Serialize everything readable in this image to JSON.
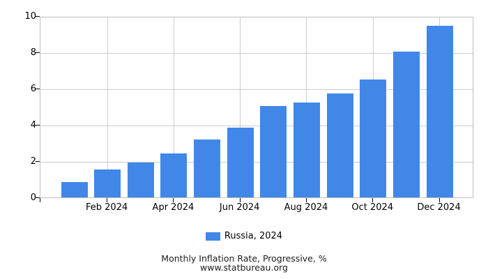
{
  "chart_data": {
    "type": "bar",
    "title": "Monthly Inflation Rate, Progressive, %",
    "subtitle": "www.statbureau.org",
    "legend": [
      {
        "label": "Russia, 2024",
        "color": "#4187E8"
      }
    ],
    "legend_position": "bottom",
    "categories": [
      "Jan 2024",
      "Feb 2024",
      "Mar 2024",
      "Apr 2024",
      "May 2024",
      "Jun 2024",
      "Jul 2024",
      "Aug 2024",
      "Sep 2024",
      "Oct 2024",
      "Nov 2024",
      "Dec 2024"
    ],
    "values": [
      0.86,
      1.55,
      1.95,
      2.46,
      3.22,
      3.88,
      5.06,
      5.27,
      5.78,
      6.56,
      8.09,
      9.52
    ],
    "x_tick_labels": [
      {
        "index": 1,
        "label": "Feb 2024"
      },
      {
        "index": 3,
        "label": "Apr 2024"
      },
      {
        "index": 5,
        "label": "Jun 2024"
      },
      {
        "index": 7,
        "label": "Aug 2024"
      },
      {
        "index": 9,
        "label": "Oct 2024"
      },
      {
        "index": 11,
        "label": "Dec 2024"
      }
    ],
    "xlabel": "",
    "ylabel": "",
    "ylim": [
      0,
      10
    ],
    "yticks": [
      0,
      2,
      4,
      6,
      8,
      10
    ],
    "grid": true,
    "colors": {
      "bar": "#4187E8",
      "grid": "#cccccc",
      "plot_border": "#bdbdbd",
      "tick": "#000000",
      "text": "#000000"
    }
  }
}
